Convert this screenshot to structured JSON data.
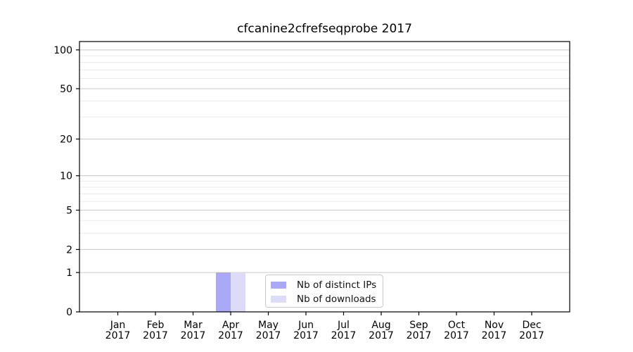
{
  "chart_data": {
    "type": "bar",
    "title": "cfcanine2cfrefseqprobe 2017",
    "categories": [
      "Jan 2017",
      "Feb 2017",
      "Mar 2017",
      "Apr 2017",
      "May 2017",
      "Jun 2017",
      "Jul 2017",
      "Aug 2017",
      "Sep 2017",
      "Oct 2017",
      "Nov 2017",
      "Dec 2017"
    ],
    "series": [
      {
        "name": "Nb of distinct IPs",
        "color": "#a9a9f7",
        "values": [
          0,
          0,
          0,
          1,
          0,
          0,
          0,
          0,
          0,
          0,
          0,
          0
        ]
      },
      {
        "name": "Nb of downloads",
        "color": "#dcdcf9",
        "values": [
          0,
          0,
          0,
          1,
          0,
          0,
          0,
          0,
          0,
          0,
          0,
          0
        ]
      }
    ],
    "xlabel": "",
    "ylabel": "",
    "y_scale": "log1p",
    "ylim": [
      0,
      116
    ],
    "y_ticks": [
      0,
      1,
      2,
      5,
      10,
      20,
      50,
      100
    ],
    "y_minor_ticks": [
      3,
      4,
      6,
      7,
      8,
      9,
      30,
      40,
      60,
      70,
      80,
      90
    ],
    "grid": "horizontal",
    "legend_position": "lower center",
    "colors": {
      "grid_major": "#c9c9c9",
      "grid_minor": "#ebebeb",
      "axis": "#000000",
      "background": "#ffffff"
    }
  }
}
